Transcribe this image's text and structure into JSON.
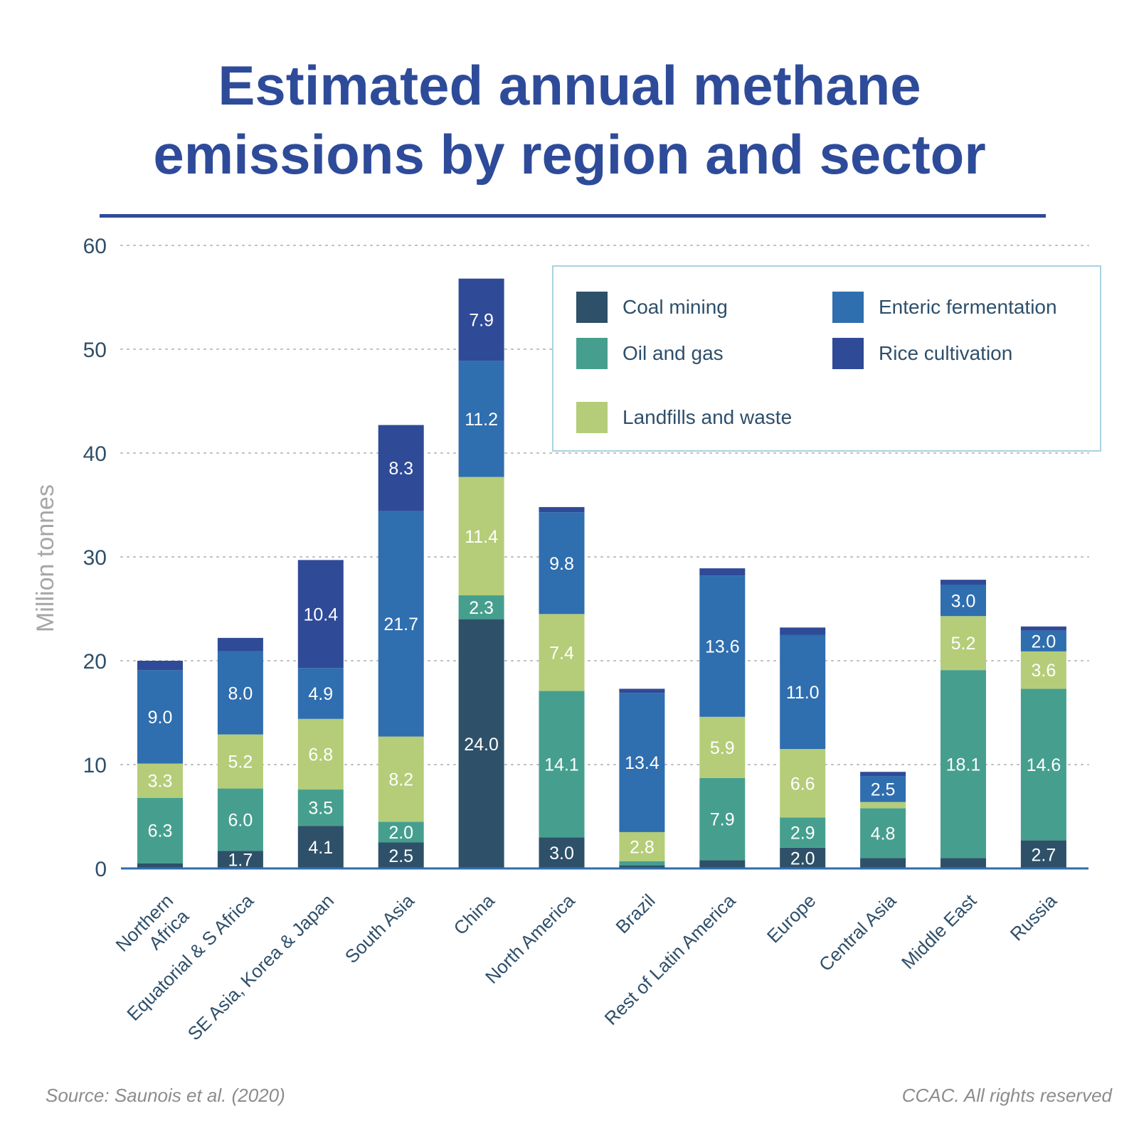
{
  "title_line1": "Estimated annual methane",
  "title_line2": "emissions by region and sector",
  "source": "Source: Saunois et al. (2020)",
  "copyright": "CCAC. All rights reserved",
  "colors": {
    "coal": "#2e5169",
    "oil_gas": "#469f8e",
    "landfill": "#b5cd79",
    "enteric": "#2f6eaf",
    "rice": "#2f4a97",
    "axis": "#2f6eaf",
    "title": "#2e4b9a"
  },
  "chart_data": {
    "type": "bar",
    "stacked": true,
    "ylabel": "Million tonnes",
    "ylim": [
      0,
      60
    ],
    "yticks": [
      0,
      10,
      20,
      30,
      40,
      50,
      60
    ],
    "grid": "dotted horizontal",
    "legend": {
      "placement": "top-right",
      "entries": [
        "Coal mining",
        "Enteric fermentation",
        "Oil and gas",
        "Rice cultivation",
        "Landfills and waste"
      ]
    },
    "categories": [
      "Northern Africa",
      "Equatorial & S Africa",
      "SE Asia, Korea & Japan",
      "South Asia",
      "China",
      "North America",
      "Brazil",
      "Rest of Latin America",
      "Europe",
      "Central Asia",
      "Middle East",
      "Russia"
    ],
    "category_lines": [
      [
        "Northern",
        "Africa"
      ],
      [
        "Equatorial & S Africa"
      ],
      [
        "SE Asia, Korea & Japan"
      ],
      [
        "South Asia"
      ],
      [
        "China"
      ],
      [
        "North America"
      ],
      [
        "Brazil"
      ],
      [
        "Rest of Latin America"
      ],
      [
        "Europe"
      ],
      [
        "Central Asia"
      ],
      [
        "Middle East"
      ],
      [
        "Russia"
      ]
    ],
    "series": [
      {
        "name": "Coal mining",
        "color": "#2e5169",
        "values": [
          0.5,
          1.7,
          4.1,
          2.5,
          24.0,
          3.0,
          0.3,
          0.8,
          2.0,
          1.0,
          1.0,
          2.7
        ],
        "labels": [
          "",
          "1.7",
          "4.1",
          "2.5",
          "24.0",
          "3.0",
          "",
          "",
          "2.0",
          "",
          "",
          "2.7"
        ]
      },
      {
        "name": "Oil and gas",
        "color": "#469f8e",
        "values": [
          6.3,
          6.0,
          3.5,
          2.0,
          2.3,
          14.1,
          0.4,
          7.9,
          2.9,
          4.8,
          18.1,
          14.6
        ],
        "labels": [
          "6.3",
          "6.0",
          "3.5",
          "2.0",
          "2.3",
          "14.1",
          "",
          "7.9",
          "2.9",
          "4.8",
          "18.1",
          "14.6"
        ]
      },
      {
        "name": "Landfills and waste",
        "color": "#b5cd79",
        "values": [
          3.3,
          5.2,
          6.8,
          8.2,
          11.4,
          7.4,
          2.8,
          5.9,
          6.6,
          0.6,
          5.2,
          3.6
        ],
        "labels": [
          "3.3",
          "5.2",
          "6.8",
          "8.2",
          "11.4",
          "7.4",
          "2.8",
          "5.9",
          "6.6",
          "",
          "5.2",
          "3.6"
        ]
      },
      {
        "name": "Enteric fermentation",
        "color": "#2f6eaf",
        "values": [
          9.0,
          8.0,
          4.9,
          21.7,
          11.2,
          9.8,
          13.4,
          13.6,
          11.0,
          2.5,
          3.0,
          2.0
        ],
        "labels": [
          "9.0",
          "8.0",
          "4.9",
          "21.7",
          "11.2",
          "9.8",
          "13.4",
          "13.6",
          "11.0",
          "2.5",
          "3.0",
          "2.0"
        ]
      },
      {
        "name": "Rice cultivation",
        "color": "#2f4a97",
        "values": [
          0.9,
          1.3,
          10.4,
          8.3,
          7.9,
          0.5,
          0.4,
          0.7,
          0.7,
          0.4,
          0.5,
          0.4
        ],
        "labels": [
          "",
          "",
          "10.4",
          "8.3",
          "7.9",
          "",
          "",
          "",
          "",
          "",
          "",
          ""
        ]
      }
    ]
  }
}
